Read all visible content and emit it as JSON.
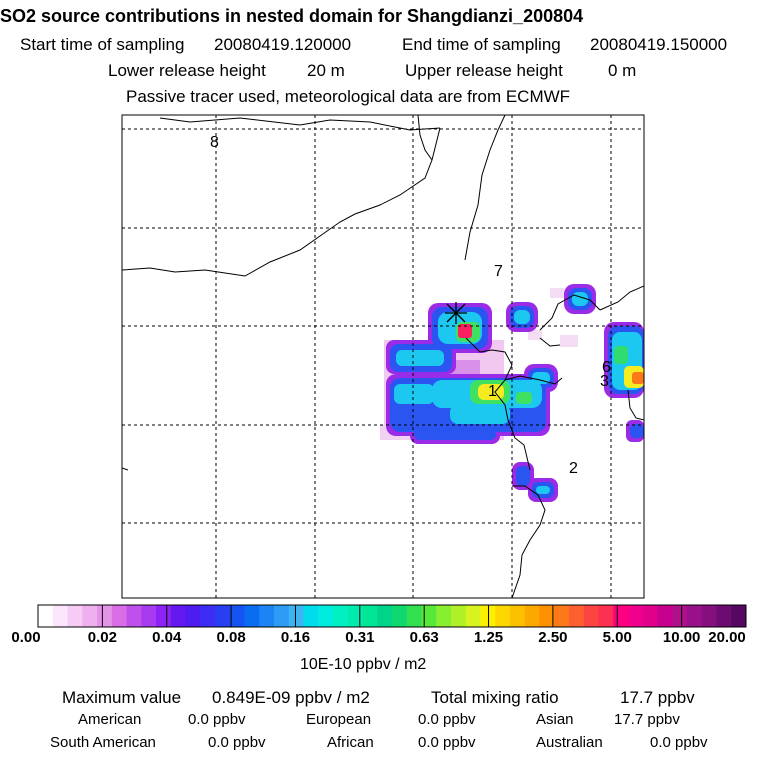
{
  "header": {
    "title": "SO2 source contributions in nested domain for Shangdianzi_200804",
    "start_label": "Start time of sampling",
    "start_value": "20080419.120000",
    "end_label": "End time of sampling",
    "end_value": "20080419.150000",
    "lower_label": "Lower release height",
    "lower_value": "20 m",
    "upper_label": "Upper release height",
    "upper_value": "0 m",
    "note": "Passive tracer used, meteorological data are from ECMWF"
  },
  "map": {
    "region_labels": [
      "8",
      "7",
      "6",
      "3",
      "1",
      "2"
    ]
  },
  "colorbar": {
    "labels": [
      "0.00",
      "0.02",
      "0.04",
      "0.08",
      "0.16",
      "0.31",
      "0.63",
      "1.25",
      "2.50",
      "5.00",
      "10.00",
      "20.00"
    ],
    "colors": [
      "#ffffff",
      "#fbe6fb",
      "#f6ccf6",
      "#eeb0ee",
      "#e494e6",
      "#d86de6",
      "#c050ec",
      "#a83af0",
      "#8c22f4",
      "#6618f0",
      "#4c1cf0",
      "#3c2cf4",
      "#283ef0",
      "#1454f2",
      "#0a6cf0",
      "#1c84f4",
      "#2c9cf4",
      "#3cb4f4",
      "#00dcec",
      "#00ecdc",
      "#00f0c4",
      "#00ecac",
      "#00e696",
      "#00d488",
      "#10d870",
      "#30e050",
      "#58e83a",
      "#88ee30",
      "#b0f028",
      "#d8f420",
      "#fcf000",
      "#fcd800",
      "#fcc000",
      "#fca800",
      "#fc9000",
      "#fc7818",
      "#fc6030",
      "#fc4440",
      "#fc3050",
      "#fc0080",
      "#f0008c",
      "#e0008c",
      "#c80090",
      "#b0108c",
      "#9a1088",
      "#841080",
      "#6c0c70",
      "#540860"
    ],
    "unit": "10E-10 ppbv / m2"
  },
  "stats": {
    "max_label": "Maximum value",
    "max_value": "0.849E-09 ppbv / m2",
    "total_label": "Total mixing ratio",
    "total_value": "17.7 ppbv",
    "regions": [
      {
        "name": "American",
        "value": "0.0 ppbv"
      },
      {
        "name": "European",
        "value": "0.0 ppbv"
      },
      {
        "name": "Asian",
        "value": "17.7 ppbv"
      },
      {
        "name": "South American",
        "value": "0.0 ppbv"
      },
      {
        "name": "African",
        "value": "0.0 ppbv"
      },
      {
        "name": "Australian",
        "value": "0.0 ppbv"
      }
    ]
  }
}
